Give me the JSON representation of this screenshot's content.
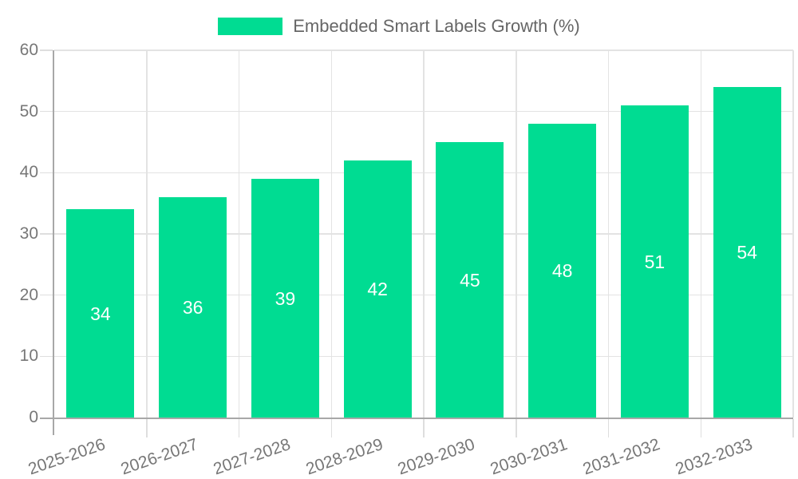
{
  "chart_data": {
    "type": "bar",
    "title": "",
    "legend_label": "Embedded Smart Labels Growth (%)",
    "legend_position": "top",
    "categories": [
      "2025-2026",
      "2026-2027",
      "2027-2028",
      "2028-2029",
      "2029-2030",
      "2030-2031",
      "2031-2032",
      "2032-2033"
    ],
    "series": [
      {
        "name": "Embedded Smart Labels Growth (%)",
        "values": [
          34,
          36,
          39,
          42,
          45,
          48,
          51,
          54
        ]
      }
    ],
    "value_labels": [
      "34",
      "36",
      "39",
      "42",
      "45",
      "48",
      "51",
      "54"
    ],
    "xlabel": "",
    "ylabel": "",
    "ylim": [
      0,
      60
    ],
    "yticks": [
      0,
      10,
      20,
      30,
      40,
      50,
      60
    ],
    "grid": true,
    "x_tick_rotation_deg": -19,
    "colors": {
      "bar": "#00dc92",
      "value_label": "#ffffff",
      "axis_label": "#777777",
      "legend_text": "#666666",
      "gridline": "#e3e3e3",
      "tick_mark": "#dedede",
      "axis_line": "#a8a8a8",
      "background": "#ffffff"
    }
  }
}
